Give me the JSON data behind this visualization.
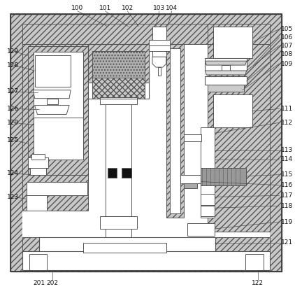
{
  "fig_width": 4.22,
  "fig_height": 4.23,
  "dpi": 100,
  "lc": "#555555",
  "hatch_fc": "#c8c8c8",
  "white": "#ffffff"
}
